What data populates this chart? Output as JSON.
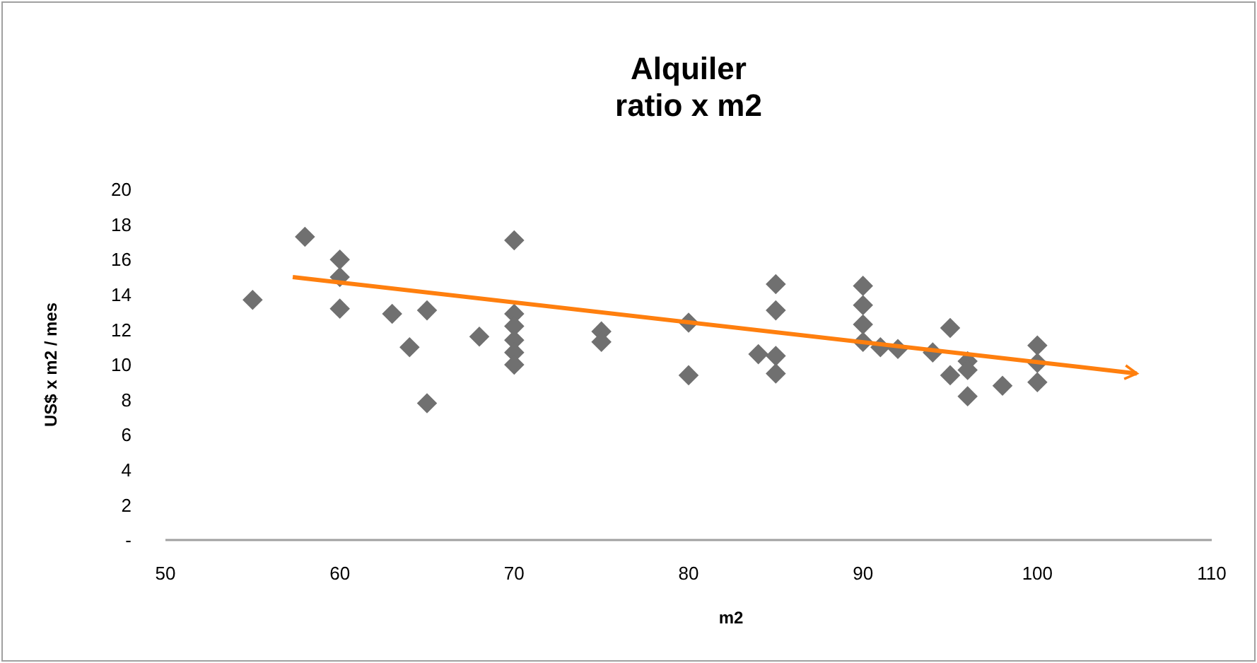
{
  "chart_data": {
    "type": "scatter",
    "title": "Alquiler",
    "subtitle": "ratio x m2",
    "xlabel": "m2",
    "ylabel": "US$ x m2 / mes",
    "xlim": [
      50,
      110
    ],
    "xticks": [
      50,
      60,
      70,
      80,
      90,
      100,
      110
    ],
    "ylim": [
      0,
      20
    ],
    "yticks": [
      {
        "value": 0,
        "label": "-"
      },
      2,
      4,
      6,
      8,
      10,
      12,
      14,
      16,
      18,
      20
    ],
    "grid": false,
    "series": [
      {
        "color": "#707070",
        "marker": "diamond",
        "x": [
          55,
          58,
          60,
          60,
          60,
          63,
          64,
          65,
          65,
          68,
          70,
          70,
          70,
          70,
          70,
          70,
          75,
          75,
          80,
          80,
          84,
          85,
          85,
          85,
          85,
          90,
          90,
          90,
          90,
          91,
          92,
          94,
          95,
          95,
          96,
          96,
          96,
          98,
          100,
          100,
          100
        ],
        "values": [
          13.7,
          17.3,
          16.0,
          15.0,
          13.2,
          12.9,
          11.0,
          13.1,
          7.8,
          11.6,
          17.1,
          12.9,
          12.2,
          11.4,
          10.7,
          10.0,
          11.9,
          11.3,
          12.4,
          9.4,
          10.6,
          14.6,
          13.1,
          10.5,
          9.5,
          14.5,
          13.4,
          12.3,
          11.3,
          11.0,
          10.9,
          10.7,
          12.1,
          9.4,
          10.2,
          9.7,
          8.2,
          8.8,
          11.1,
          10.1,
          9.0
        ]
      },
      {
        "type": "line",
        "color": "#ff7f0e",
        "marker": "none",
        "line_style": "solid",
        "x": [
          57.3,
          105.7
        ],
        "values": [
          15.0,
          9.5
        ]
      }
    ]
  }
}
